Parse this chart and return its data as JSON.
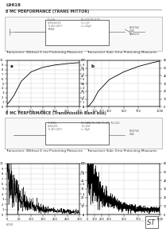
{
  "title": "L9616",
  "section1_title": "8 MC PERFORMANCE (TRANS MITTOR)",
  "section2_title": "8 MC PERFORMANCE (Transmission Band bus)",
  "graph1_title": "a",
  "graph2_title": "b",
  "page_num": "6/10",
  "bg_color": "#ffffff",
  "line_color": "#000000",
  "grid_color": "#cccccc",
  "curve_color1": "#000000",
  "curve_color2": "#000000",
  "logo_color": "#000000"
}
